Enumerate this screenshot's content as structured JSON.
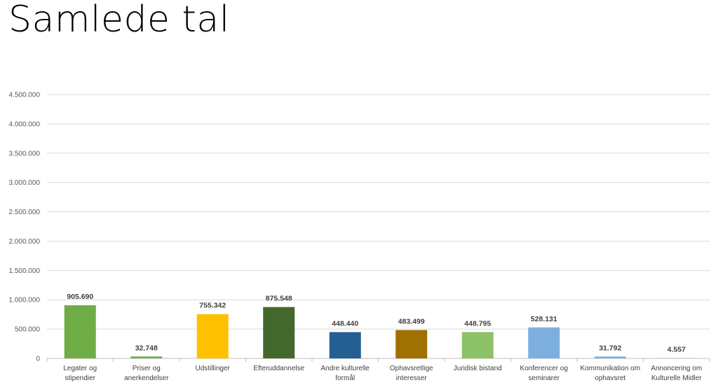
{
  "title": "Samlede tal",
  "chart_data": {
    "type": "bar",
    "title": "",
    "xlabel": "",
    "ylabel": "",
    "ylim": [
      0,
      4500000
    ],
    "y_ticks": [
      0,
      500000,
      1000000,
      1500000,
      2000000,
      2500000,
      3000000,
      3500000,
      4000000,
      4500000
    ],
    "y_tick_labels": [
      "0",
      "500.000",
      "1.000.000",
      "1.500.000",
      "2.000.000",
      "2.500.000",
      "3.000.000",
      "3.500.000",
      "4.000.000",
      "4.500.000"
    ],
    "grid": true,
    "legend": "none",
    "categories": [
      [
        "Legater og",
        "stipendier"
      ],
      [
        "Priser og",
        "anerkendelser"
      ],
      [
        "Udstillinger"
      ],
      [
        "Efteruddannelse"
      ],
      [
        "Andre kulturelle",
        "formål"
      ],
      [
        "Ophavsretlige",
        "interesser"
      ],
      [
        "Juridisk bistand"
      ],
      [
        "Konferencer og",
        "seminarer"
      ],
      [
        "Kommunikation om",
        "ophavsret"
      ],
      [
        "Annoncering om",
        "Kulturelle Midler"
      ]
    ],
    "values": [
      905690,
      32748,
      755342,
      875548,
      448440,
      483499,
      448795,
      528131,
      31792,
      4557
    ],
    "value_labels": [
      "905.690",
      "32.748",
      "755.342",
      "875.548",
      "448.440",
      "483.499",
      "448.795",
      "528.131",
      "31.792",
      "4.557"
    ],
    "colors": [
      "#70ad47",
      "#70ad47",
      "#ffc000",
      "#43682b",
      "#255e91",
      "#9e7100",
      "#8cc168",
      "#7cafdd",
      "#7cafdd",
      "#7cafdd"
    ]
  }
}
